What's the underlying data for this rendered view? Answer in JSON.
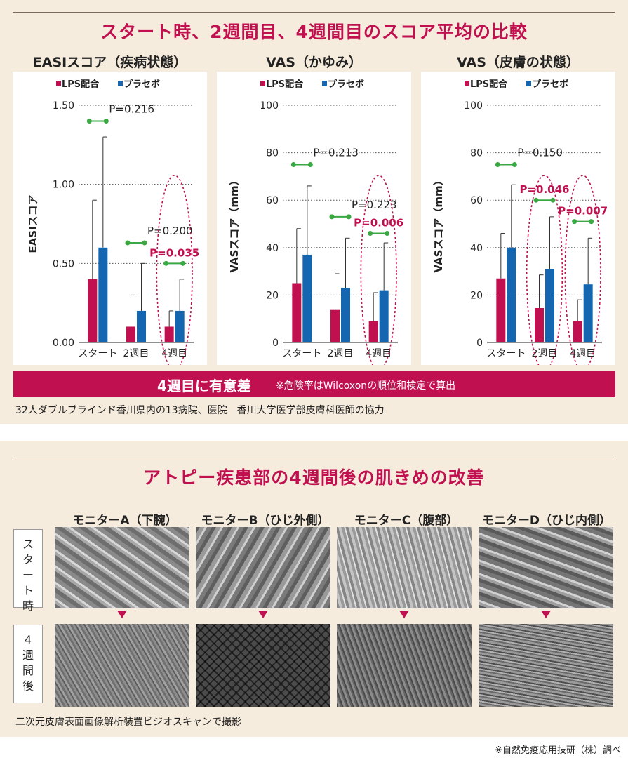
{
  "header": {
    "title": "スタート時、2週間目、4週間目のスコア平均の比較"
  },
  "colors": {
    "lps": "#c0104f",
    "placebo": "#1466b0",
    "pvalue_marker": "#3aa843",
    "accent": "#c0104f",
    "panel_bg": "#f6ecdd"
  },
  "chart_data": [
    {
      "type": "bar",
      "title": "EASIスコア（疾病状態）",
      "legend": [
        "LPS配合",
        "プラセボ"
      ],
      "legend_position": "top-left",
      "ylabel": "EASIスコア",
      "ylim": [
        0,
        1.5
      ],
      "yticks": [
        "0.00",
        "0.50",
        "1.00",
        "1.50"
      ],
      "categories": [
        "スタート",
        "2週目",
        "4週目"
      ],
      "series": [
        {
          "name": "LPS配合",
          "values": [
            0.4,
            0.1,
            0.1
          ],
          "err": [
            0.5,
            0.2,
            0.1
          ]
        },
        {
          "name": "プラセボ",
          "values": [
            0.6,
            0.2,
            0.2
          ],
          "err": [
            0.7,
            0.3,
            0.2
          ]
        }
      ],
      "pvalues": [
        {
          "label": "P=0.216",
          "value": 1.4,
          "highlight": false
        },
        {
          "label": "P=0.200",
          "value": 0.63,
          "highlight": false
        },
        {
          "label": "P=0.035",
          "value": 0.5,
          "highlight": true
        }
      ],
      "circled": [
        "4週目"
      ],
      "grid": true
    },
    {
      "type": "bar",
      "title": "VAS（かゆみ）",
      "legend": [
        "LPS配合",
        "プラセボ"
      ],
      "legend_position": "top-left",
      "ylabel": "VASスコア（mm）",
      "ylim": [
        0,
        100
      ],
      "yticks": [
        "0",
        "20",
        "40",
        "60",
        "80",
        "100"
      ],
      "categories": [
        "スタート",
        "2週目",
        "4週目"
      ],
      "series": [
        {
          "name": "LPS配合",
          "values": [
            25,
            14,
            9
          ],
          "err": [
            23,
            15,
            12
          ]
        },
        {
          "name": "プラセボ",
          "values": [
            37,
            23,
            22
          ],
          "err": [
            29,
            21,
            20
          ]
        }
      ],
      "pvalues": [
        {
          "label": "P=0.213",
          "value": 75,
          "highlight": false
        },
        {
          "label": "P=0.223",
          "value": 53,
          "highlight": false
        },
        {
          "label": "P=0.006",
          "value": 46,
          "highlight": true
        }
      ],
      "circled": [
        "4週目"
      ],
      "grid": true
    },
    {
      "type": "bar",
      "title": "VAS（皮膚の状態）",
      "legend": [
        "LPS配合",
        "プラセボ"
      ],
      "legend_position": "top-left",
      "ylabel": "VASスコア（mm）",
      "ylim": [
        0,
        100
      ],
      "yticks": [
        "0",
        "20",
        "40",
        "60",
        "80",
        "100"
      ],
      "categories": [
        "スタート",
        "2週目",
        "4週目"
      ],
      "series": [
        {
          "name": "LPS配合",
          "values": [
            27,
            14.5,
            9
          ],
          "err": [
            19,
            14,
            9
          ]
        },
        {
          "name": "プラセボ",
          "values": [
            40,
            31,
            24.5
          ],
          "err": [
            26.5,
            22,
            19.5
          ]
        }
      ],
      "pvalues": [
        {
          "label": "P=0.150",
          "value": 75,
          "highlight": false
        },
        {
          "label": "P=0.046",
          "value": 60,
          "highlight": true
        },
        {
          "label": "P=0.007",
          "value": 51,
          "highlight": true
        }
      ],
      "circled": [
        "2週目",
        "4週目"
      ],
      "grid": true
    }
  ],
  "banner": {
    "main": "4週目に有意差",
    "note": "※危険率はWilcoxonの順位和検定で算出"
  },
  "study_note": "32人ダブルブラインド香川県内の13病院、医院　香川大学医学部皮膚科医師の協力",
  "skin_section": {
    "title": "アトピー疾患部の4週間後の肌きめの改善",
    "monitors": [
      "モニターA（下腕）",
      "モニターB（ひじ外側）",
      "モニターC（腹部）",
      "モニターD（ひじ内側）"
    ],
    "rows": [
      "スタート時",
      "4週間後"
    ],
    "caption": "二次元皮膚表面画像解析装置ビジオスキャンで撮影"
  },
  "footer": {
    "source": "※自然免疫応用技研（株）調べ"
  }
}
